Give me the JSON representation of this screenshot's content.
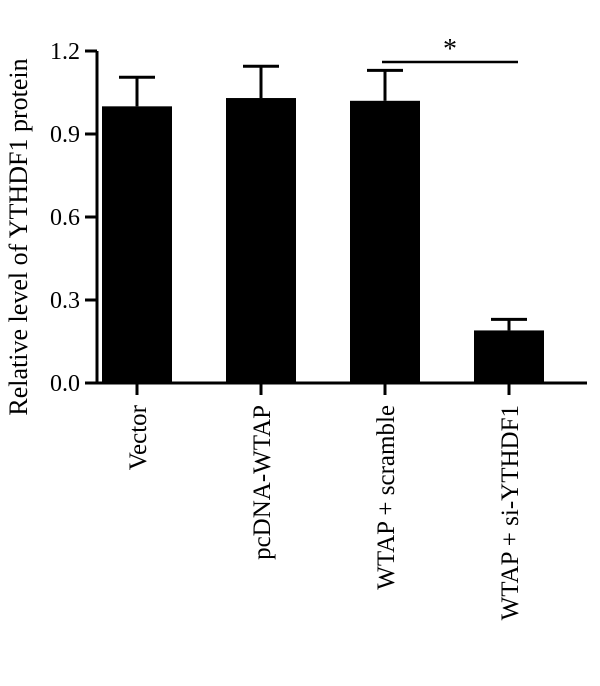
{
  "chart_data": {
    "type": "bar",
    "ylabel": "Relative level of YTHDF1 protein",
    "xlabel": "",
    "categories": [
      "Vector",
      "pcDNA-WTAP",
      "WTAP + scramble",
      "WTAP + si-YTHDF1"
    ],
    "values": [
      1.0,
      1.03,
      1.02,
      0.19
    ],
    "error_upper": [
      0.105,
      0.115,
      0.11,
      0.04
    ],
    "ylim": [
      0,
      1.2
    ],
    "yticks": [
      "0.0",
      "0.3",
      "0.6",
      "0.9",
      "1.2"
    ],
    "bar_color": "#000000",
    "grid": false,
    "legend": "none",
    "significance": [
      {
        "from": "WTAP + scramble",
        "to": "WTAP + si-YTHDF1",
        "label": "*"
      }
    ]
  }
}
